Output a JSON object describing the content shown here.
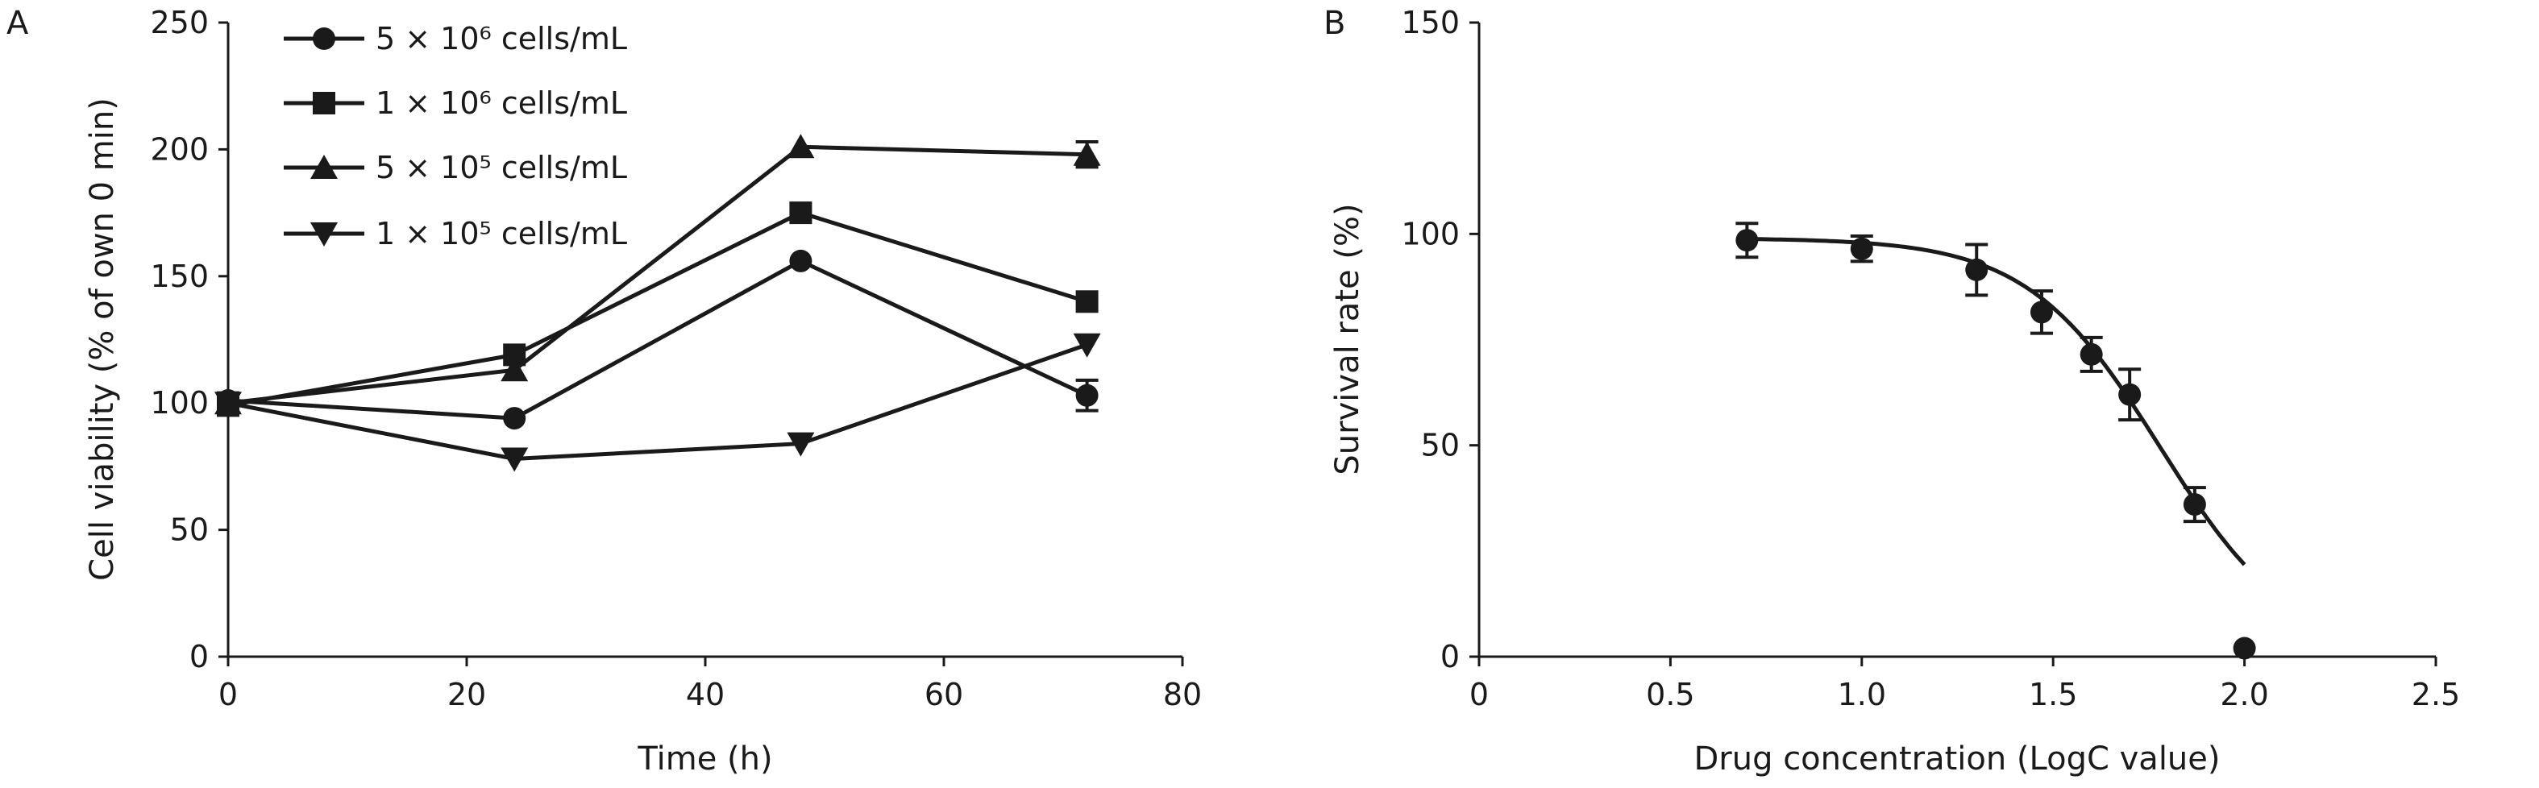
{
  "chart_data": [
    {
      "type": "line",
      "panel_label": "A",
      "xlabel": "Time (h)",
      "ylabel": "Cell viability (% of own 0 min)",
      "xlim": [
        0,
        80
      ],
      "ylim": [
        0,
        250
      ],
      "xticks": [
        0,
        20,
        40,
        60,
        80
      ],
      "yticks": [
        0,
        50,
        100,
        150,
        200,
        250
      ],
      "x": [
        0,
        24,
        48,
        72
      ],
      "legend_position": "top-left",
      "series": [
        {
          "name": "5 × 10⁶ cells/mL",
          "marker": "circle",
          "values": [
            101,
            94,
            156,
            103
          ],
          "errors": [
            3,
            0,
            0,
            6
          ]
        },
        {
          "name": "1 × 10⁶ cells/mL",
          "marker": "square",
          "values": [
            99,
            119,
            175,
            140
          ],
          "errors": [
            3,
            0,
            0,
            0
          ]
        },
        {
          "name": "5 × 10⁵ cells/mL",
          "marker": "triangle-up",
          "values": [
            100,
            113,
            201,
            198
          ],
          "errors": [
            0,
            0,
            0,
            5
          ]
        },
        {
          "name": "1 × 10⁵ cells/mL",
          "marker": "triangle-down",
          "values": [
            100,
            78,
            84,
            123
          ],
          "errors": [
            0,
            0,
            0,
            0
          ]
        }
      ]
    },
    {
      "type": "scatter",
      "panel_label": "B",
      "xlabel": "Drug concentration (LogC value)",
      "ylabel": "Survival rate (%)",
      "xlim": [
        0,
        2.5
      ],
      "ylim": [
        0,
        150
      ],
      "xticks": [
        "0",
        "0.5",
        "1.0",
        "1.5",
        "2.0",
        "2.5"
      ],
      "yticks": [
        0,
        50,
        100,
        150
      ],
      "points": {
        "x": [
          0.7,
          1.0,
          1.3,
          1.47,
          1.6,
          1.7,
          1.87,
          2.0
        ],
        "y": [
          98.5,
          96.5,
          91.5,
          81.5,
          71.5,
          62,
          36,
          2
        ],
        "errors": [
          4,
          3,
          6,
          5,
          4,
          6,
          4,
          0
        ]
      },
      "fit_curve": {
        "type": "sigmoid",
        "top": 99,
        "log_ic50": 1.78,
        "hill": 2.5,
        "x_range": [
          0.7,
          2.0
        ]
      }
    }
  ]
}
